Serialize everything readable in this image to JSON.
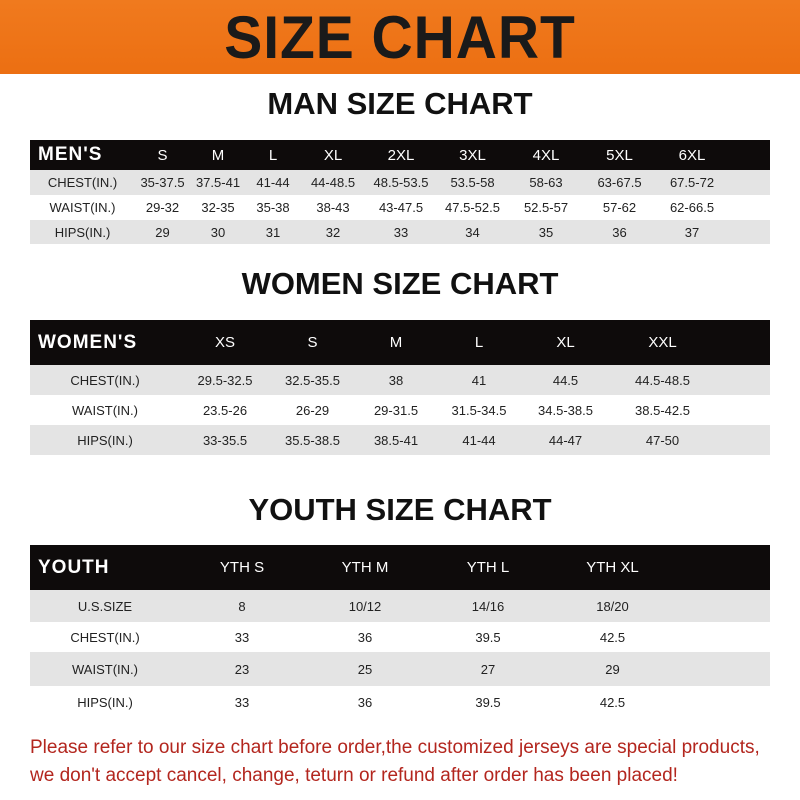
{
  "title": "SIZE CHART",
  "men": {
    "title": "MAN SIZE CHART",
    "header": "MEN'S",
    "columns": [
      "S",
      "M",
      "L",
      "XL",
      "2XL",
      "3XL",
      "4XL",
      "5XL",
      "6XL"
    ],
    "rows": [
      {
        "label": "CHEST(IN.)",
        "values": [
          "35-37.5",
          "37.5-41",
          "41-44",
          "44-48.5",
          "48.5-53.5",
          "53.5-58",
          "58-63",
          "63-67.5",
          "67.5-72"
        ]
      },
      {
        "label": "WAIST(IN.)",
        "values": [
          "29-32",
          "32-35",
          "35-38",
          "38-43",
          "43-47.5",
          "47.5-52.5",
          "52.5-57",
          "57-62",
          "62-66.5"
        ]
      },
      {
        "label": "HIPS(IN.)",
        "values": [
          "29",
          "30",
          "31",
          "32",
          "33",
          "34",
          "35",
          "36",
          "37"
        ]
      }
    ]
  },
  "women": {
    "title": "WOMEN SIZE CHART",
    "header": "WOMEN'S",
    "columns": [
      "XS",
      "S",
      "M",
      "L",
      "XL",
      "XXL"
    ],
    "rows": [
      {
        "label": "CHEST(IN.)",
        "values": [
          "29.5-32.5",
          "32.5-35.5",
          "38",
          "41",
          "44.5",
          "44.5-48.5"
        ]
      },
      {
        "label": "WAIST(IN.)",
        "values": [
          "23.5-26",
          "26-29",
          "29-31.5",
          "31.5-34.5",
          "34.5-38.5",
          "38.5-42.5"
        ]
      },
      {
        "label": "HIPS(IN.)",
        "values": [
          "33-35.5",
          "35.5-38.5",
          "38.5-41",
          "41-44",
          "44-47",
          "47-50"
        ]
      }
    ]
  },
  "youth": {
    "title": "YOUTH SIZE CHART",
    "header": "YOUTH",
    "columns": [
      "YTH S",
      "YTH M",
      "YTH L",
      "YTH XL"
    ],
    "rows": [
      {
        "label": "U.S.SIZE",
        "values": [
          "8",
          "10/12",
          "14/16",
          "18/20"
        ]
      },
      {
        "label": "CHEST(IN.)",
        "values": [
          "33",
          "36",
          "39.5",
          "42.5"
        ]
      },
      {
        "label": "WAIST(IN.)",
        "values": [
          "23",
          "25",
          "27",
          "29"
        ]
      },
      {
        "label": "HIPS(IN.)",
        "values": [
          "33",
          "36",
          "39.5",
          "42.5"
        ]
      }
    ]
  },
  "notice": {
    "line1": "Please refer to our size chart before order,the customized jerseys are special products,",
    "line2": "we don't accept cancel, change, teturn or refund after order has been placed!"
  },
  "colors": {
    "banner": "#ec6f12",
    "header_row": "#0e0b0b",
    "notice": "#b3261e"
  }
}
